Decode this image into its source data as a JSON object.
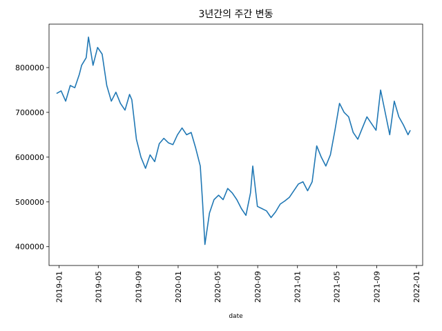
{
  "chart_data": {
    "type": "line",
    "title": "3년간의 주간 변동",
    "xlabel": "date",
    "ylabel": "",
    "grid": false,
    "legend": "none",
    "line_color": "#1f77b4",
    "xlim": [
      "2018-12-01",
      "2022-01-20"
    ],
    "ylim": [
      358000,
      897000
    ],
    "x_ticks": [
      "2019-01",
      "2019-05",
      "2019-09",
      "2020-01",
      "2020-05",
      "2020-09",
      "2021-01",
      "2021-05",
      "2021-09",
      "2022-01"
    ],
    "y_ticks": [
      400000,
      500000,
      600000,
      700000,
      800000
    ],
    "y_tick_labels": [
      "400000",
      "500000",
      "600000",
      "700000",
      "800000"
    ],
    "series": [
      {
        "x": [
          "2018-12-24",
          "2019-01-07",
          "2019-01-21",
          "2019-02-04",
          "2019-02-18",
          "2019-03-04",
          "2019-03-11",
          "2019-03-25",
          "2019-04-01",
          "2019-04-15",
          "2019-04-29",
          "2019-05-13",
          "2019-05-27",
          "2019-06-10",
          "2019-06-24",
          "2019-07-08",
          "2019-07-22",
          "2019-08-05",
          "2019-08-12",
          "2019-08-26",
          "2019-09-09",
          "2019-09-23",
          "2019-10-07",
          "2019-10-21",
          "2019-11-04",
          "2019-11-18",
          "2019-12-02",
          "2019-12-16",
          "2019-12-30",
          "2020-01-13",
          "2020-01-27",
          "2020-02-10",
          "2020-02-24",
          "2020-03-09",
          "2020-03-16",
          "2020-03-23",
          "2020-04-06",
          "2020-04-20",
          "2020-05-04",
          "2020-05-18",
          "2020-06-01",
          "2020-06-15",
          "2020-06-29",
          "2020-07-13",
          "2020-07-27",
          "2020-08-10",
          "2020-08-17",
          "2020-08-31",
          "2020-09-14",
          "2020-09-28",
          "2020-10-12",
          "2020-10-26",
          "2020-11-09",
          "2020-11-23",
          "2020-12-07",
          "2020-12-21",
          "2021-01-04",
          "2021-01-18",
          "2021-02-01",
          "2021-02-15",
          "2021-03-01",
          "2021-03-15",
          "2021-03-29",
          "2021-04-12",
          "2021-04-26",
          "2021-05-10",
          "2021-05-24",
          "2021-06-07",
          "2021-06-21",
          "2021-07-05",
          "2021-07-19",
          "2021-08-02",
          "2021-08-16",
          "2021-08-30",
          "2021-09-13",
          "2021-09-27",
          "2021-10-11",
          "2021-10-25",
          "2021-11-08",
          "2021-11-22",
          "2021-12-06",
          "2021-12-13"
        ],
        "y": [
          742000,
          748000,
          725000,
          760000,
          755000,
          785000,
          805000,
          822000,
          868000,
          805000,
          845000,
          830000,
          760000,
          725000,
          745000,
          720000,
          705000,
          740000,
          728000,
          640000,
          600000,
          575000,
          605000,
          590000,
          630000,
          642000,
          632000,
          628000,
          650000,
          665000,
          650000,
          655000,
          620000,
          580000,
          500000,
          405000,
          475000,
          505000,
          515000,
          505000,
          530000,
          520000,
          505000,
          485000,
          470000,
          520000,
          580000,
          490000,
          485000,
          480000,
          465000,
          478000,
          495000,
          502000,
          510000,
          525000,
          540000,
          545000,
          525000,
          545000,
          625000,
          600000,
          580000,
          605000,
          660000,
          720000,
          700000,
          690000,
          655000,
          640000,
          665000,
          690000,
          675000,
          660000,
          750000,
          700000,
          650000,
          725000,
          690000,
          672000,
          650000,
          660000
        ]
      }
    ]
  }
}
